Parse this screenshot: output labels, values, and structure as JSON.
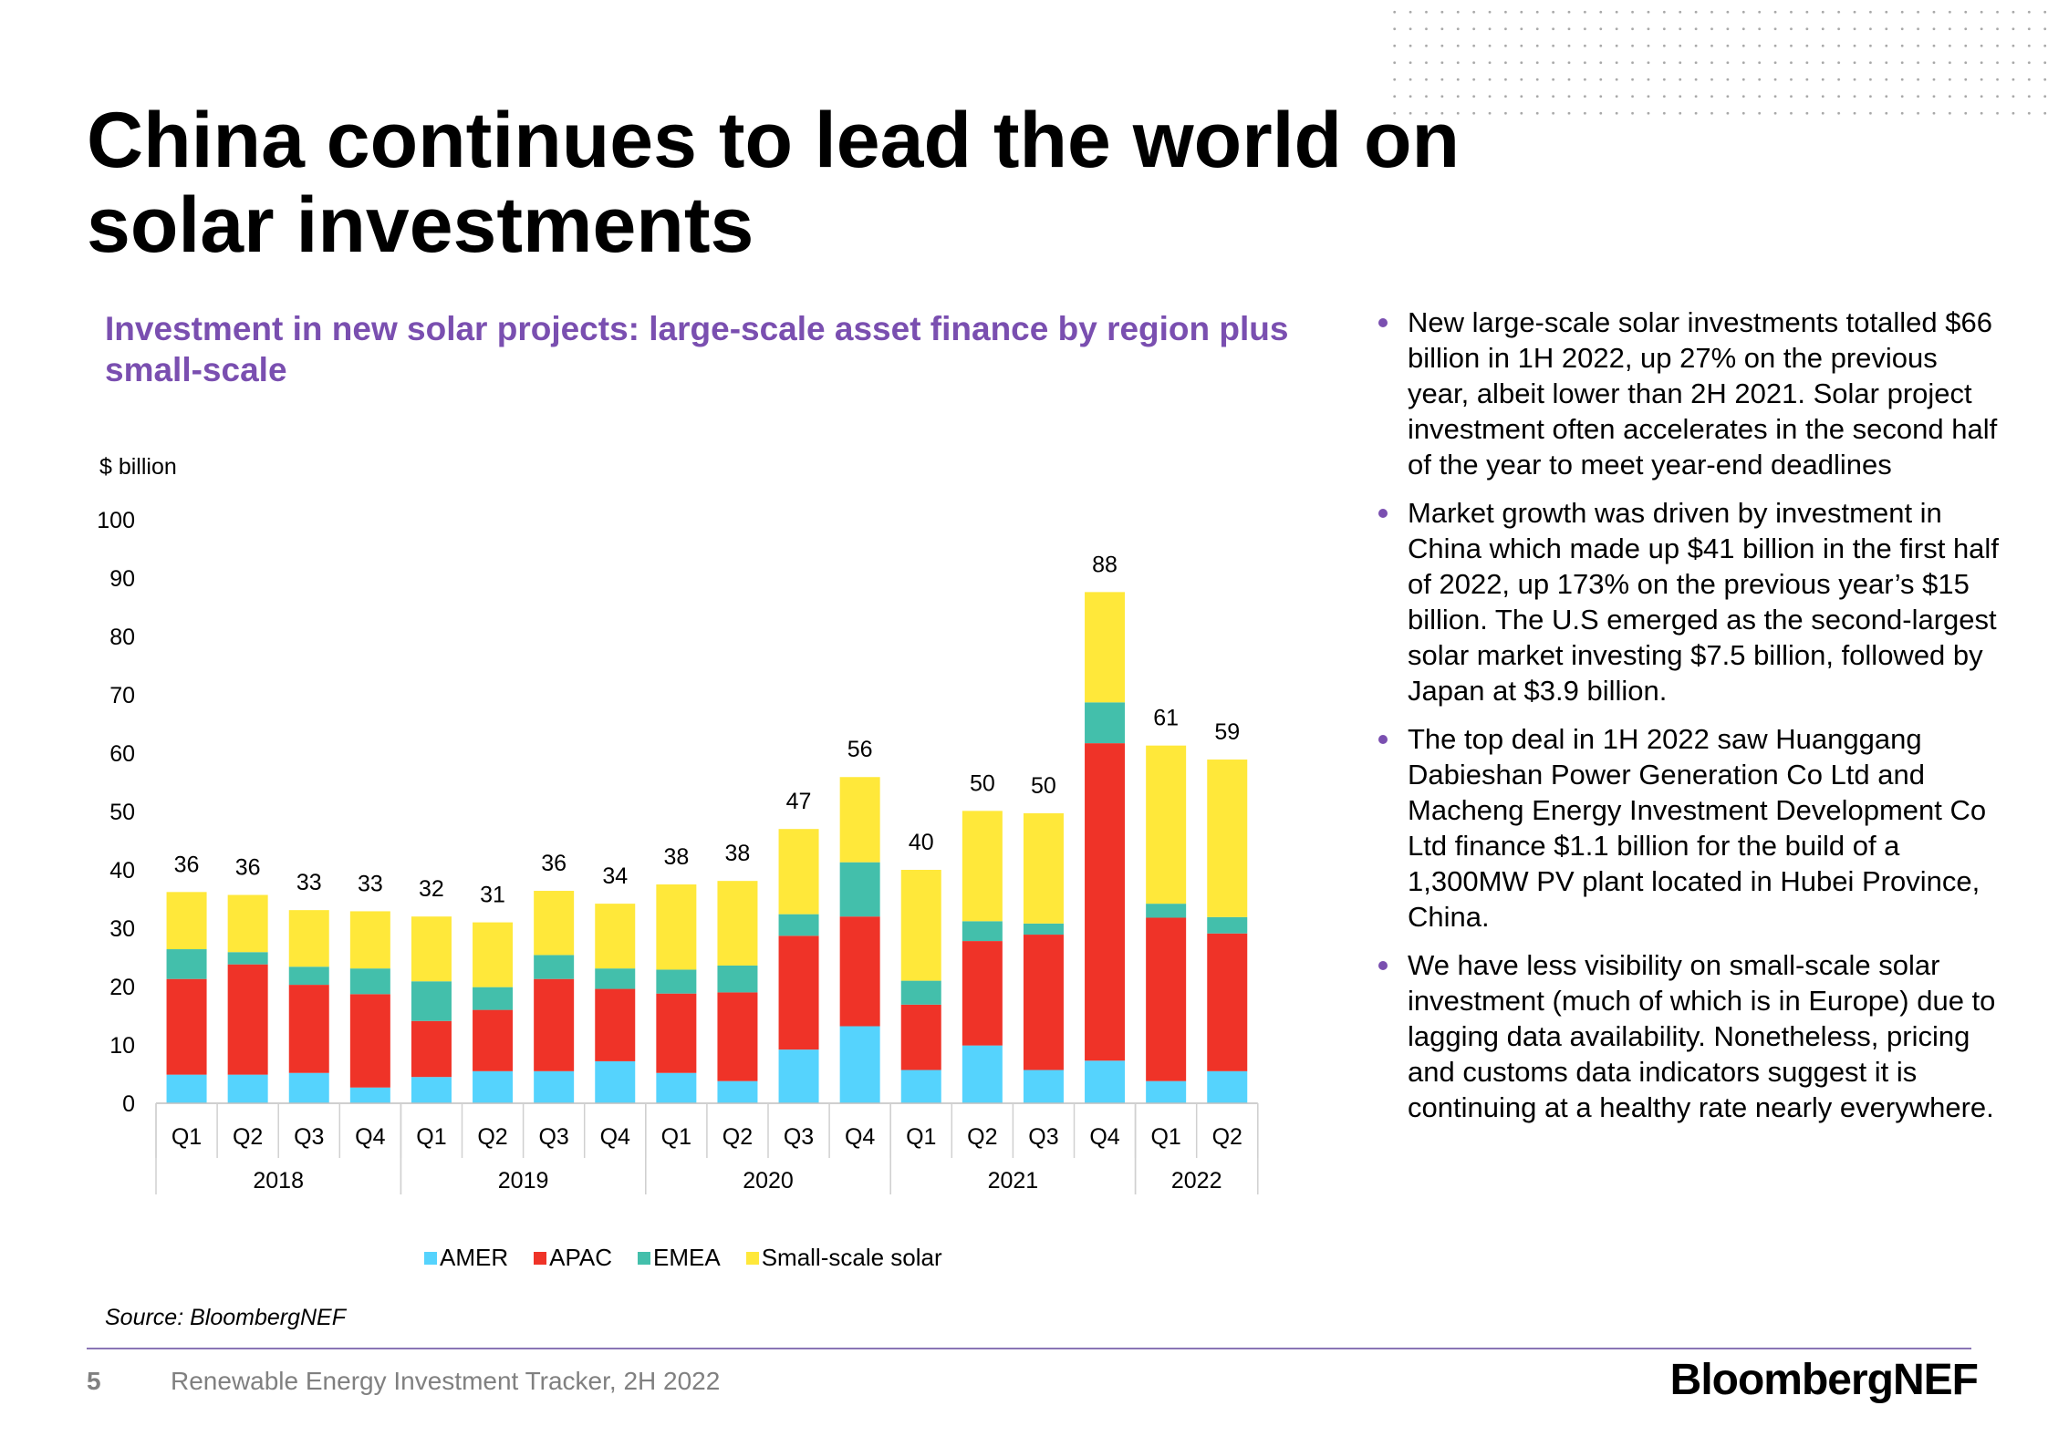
{
  "title": "China continues to lead the world on solar investments",
  "subtitle": "Investment in new solar projects: large-scale asset finance by region plus small-scale",
  "colors": {
    "AMER": "#55d3fd",
    "APAC": "#ef3328",
    "EMEA": "#43bfab",
    "Small-scale solar": "#ffe83a",
    "accent": "#7a4fb0"
  },
  "chart_data": {
    "type": "bar",
    "stacked": true,
    "ylabel": "$ billion",
    "ylim": [
      0,
      100
    ],
    "yticks": [
      0,
      10,
      20,
      30,
      40,
      50,
      60,
      70,
      80,
      90,
      100
    ],
    "grid": false,
    "legend": "bottom",
    "categories": [
      "Q1",
      "Q2",
      "Q3",
      "Q4",
      "Q1",
      "Q2",
      "Q3",
      "Q4",
      "Q1",
      "Q2",
      "Q3",
      "Q4",
      "Q1",
      "Q2",
      "Q3",
      "Q4",
      "Q1",
      "Q2"
    ],
    "years": [
      {
        "label": "2018",
        "count": 4
      },
      {
        "label": "2019",
        "count": 4
      },
      {
        "label": "2020",
        "count": 4
      },
      {
        "label": "2021",
        "count": 4
      },
      {
        "label": "2022",
        "count": 2
      }
    ],
    "series": [
      {
        "name": "AMER",
        "values": [
          4.9,
          4.9,
          5.2,
          2.7,
          4.5,
          5.5,
          5.5,
          7.2,
          5.2,
          3.8,
          9.2,
          13.2,
          5.7,
          9.9,
          5.7,
          7.3,
          3.8,
          5.5
        ]
      },
      {
        "name": "APAC",
        "values": [
          16.4,
          18.9,
          15.1,
          16.0,
          9.6,
          10.5,
          15.8,
          12.4,
          13.6,
          15.2,
          19.5,
          18.8,
          11.2,
          17.9,
          23.2,
          54.4,
          28.0,
          23.6
        ]
      },
      {
        "name": "EMEA",
        "values": [
          5.1,
          2.1,
          3.1,
          4.4,
          6.8,
          3.9,
          4.1,
          3.5,
          4.1,
          4.6,
          3.7,
          9.3,
          4.1,
          3.4,
          1.9,
          7.0,
          2.4,
          2.8
        ]
      },
      {
        "name": "Small-scale solar",
        "values": [
          9.8,
          9.8,
          9.7,
          9.8,
          11.1,
          11.1,
          11.0,
          11.1,
          14.6,
          14.5,
          14.6,
          14.6,
          19.0,
          18.9,
          18.9,
          18.9,
          27.1,
          27.0
        ]
      }
    ],
    "totals": [
      36,
      36,
      33,
      33,
      32,
      31,
      36,
      34,
      38,
      38,
      47,
      56,
      40,
      50,
      50,
      88,
      61,
      59
    ]
  },
  "legend": [
    "AMER",
    "APAC",
    "EMEA",
    "Small-scale solar"
  ],
  "source": "Source: BloombergNEF",
  "bullets": [
    "New large-scale solar investments totalled $66 billion in 1H 2022, up 27% on the previous year, albeit lower than 2H 2021. Solar project investment often accelerates in the second half of the year to meet year-end deadlines",
    "Market growth was driven by investment in China which made up $41 billion in the first half of 2022, up 173% on the previous year’s $15 billion. The U.S emerged as the second-largest solar market investing $7.5 billion, followed by Japan at $3.9 billion.",
    "The top deal in 1H 2022 saw Huanggang Dabieshan Power Generation Co Ltd and Macheng Energy Investment Development Co Ltd finance $1.1 billion for the build of a 1,300MW PV plant located in Hubei Province, China.",
    "We have less visibility on small-scale solar investment (much of which is in Europe) due to lagging data availability. Nonetheless, pricing and customs data indicators suggest it is continuing at a healthy rate nearly everywhere."
  ],
  "footer": {
    "page": "5",
    "text": "Renewable Energy Investment Tracker, 2H 2022",
    "logo": "BloombergNEF"
  }
}
